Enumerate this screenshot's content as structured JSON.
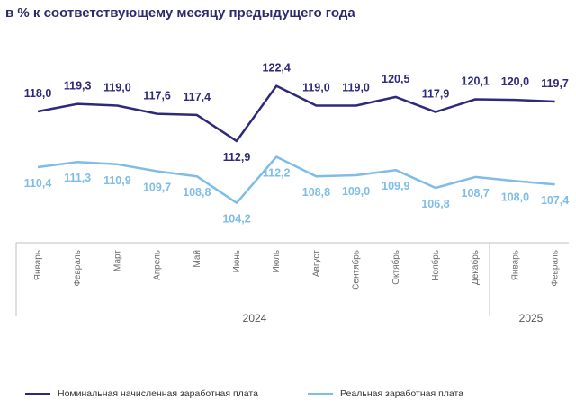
{
  "title": "в % к соответствующему месяцу предыдущего года",
  "chart_data": {
    "type": "line",
    "categories": [
      "Январь",
      "Февраль",
      "Март",
      "Апрель",
      "Май",
      "Июнь",
      "Июль",
      "Август",
      "Сентябрь",
      "Октябрь",
      "Ноябрь",
      "Декабрь",
      "Январь",
      "Февраль"
    ],
    "year_groups": [
      {
        "label": "2024"
      },
      {
        "label": "2025"
      }
    ],
    "series": [
      {
        "name": "Номинальная начисленная заработная плата",
        "color": "#2e2a7a",
        "values": [
          118.0,
          119.3,
          119.0,
          117.6,
          117.4,
          112.9,
          122.4,
          119.0,
          119.0,
          120.5,
          117.9,
          120.1,
          120.0,
          119.7
        ],
        "labels": [
          "118,0",
          "119,3",
          "119,0",
          "117,6",
          "117,4",
          "112,9",
          "122,4",
          "119,0",
          "119,0",
          "120,5",
          "117,9",
          "120,1",
          "120,0",
          "119,7"
        ]
      },
      {
        "name": "Реальная заработная плата",
        "color": "#7fbde8",
        "values": [
          110.4,
          111.3,
          110.9,
          109.7,
          108.8,
          104.2,
          112.2,
          108.8,
          109.0,
          109.9,
          106.8,
          108.7,
          108.0,
          107.4
        ],
        "labels": [
          "110,4",
          "111,3",
          "110,9",
          "109,7",
          "108,8",
          "104,2",
          "112,2",
          "108,8",
          "109,0",
          "109,9",
          "106,8",
          "108,7",
          "108,0",
          "107,4"
        ]
      }
    ]
  }
}
